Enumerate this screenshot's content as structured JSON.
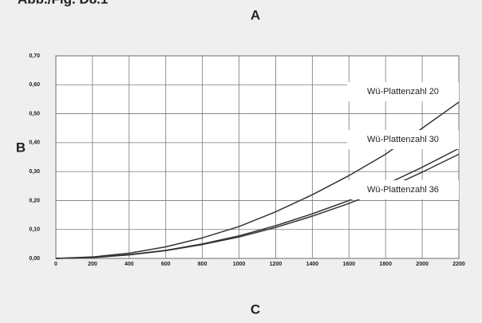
{
  "chart_data": {
    "type": "line",
    "figure_label": "Abb./Fig. D8.1",
    "title": "A",
    "y_label": "B",
    "x_label": "C",
    "x": [
      0,
      200,
      400,
      600,
      800,
      1000,
      1200,
      1400,
      1600,
      1800,
      2000,
      2200
    ],
    "series": [
      {
        "name": "Wü-Plattenzahl 20",
        "color": "#333333",
        "values": [
          0,
          0.005,
          0.018,
          0.04,
          0.071,
          0.11,
          0.161,
          0.22,
          0.286,
          0.36,
          0.45,
          0.54
        ]
      },
      {
        "name": "Wü-Plattenzahl 30",
        "color": "#333333",
        "values": [
          0,
          0.003,
          0.013,
          0.028,
          0.05,
          0.078,
          0.113,
          0.154,
          0.2,
          0.255,
          0.315,
          0.38
        ]
      },
      {
        "name": "Wü-Plattenzahl 36",
        "color": "#333333",
        "values": [
          0,
          0.003,
          0.012,
          0.027,
          0.048,
          0.074,
          0.107,
          0.146,
          0.19,
          0.24,
          0.298,
          0.36
        ]
      }
    ],
    "xlim": [
      0,
      2200
    ],
    "xticks": [
      0,
      200,
      400,
      600,
      800,
      1000,
      1200,
      1400,
      1600,
      1800,
      2000,
      2200
    ],
    "ylim": [
      0,
      0.7
    ],
    "yticks": [
      {
        "value": 0,
        "label": "0,00"
      },
      {
        "value": 0.1,
        "label": "0,10"
      },
      {
        "value": 0.2,
        "label": "0,20"
      },
      {
        "value": 0.3,
        "label": "0,30"
      },
      {
        "value": 0.4,
        "label": "0,40"
      },
      {
        "value": 0.5,
        "label": "0,50"
      },
      {
        "value": 0.6,
        "label": "0,60"
      },
      {
        "value": 0.7,
        "label": "0,70"
      }
    ],
    "grid": true
  }
}
